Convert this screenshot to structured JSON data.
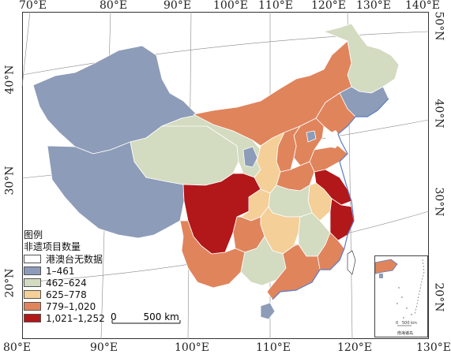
{
  "map": {
    "top_ticks": [
      "70°E",
      "80°E",
      "90°E",
      "100°E",
      "110°E",
      "120°E",
      "130°E",
      "140°E"
    ],
    "bottom_ticks": [
      "80°E",
      "90°E",
      "100°E",
      "110°E",
      "120°E",
      "130°E"
    ],
    "left_ticks": [
      "40°N",
      "30°N",
      "20°N"
    ],
    "right_ticks": [
      "50°N",
      "40°N",
      "30°N",
      "20°N"
    ]
  },
  "legend": {
    "title_line1": "图例",
    "title_line2": "非遗项目数量",
    "items": [
      {
        "label": "港澳台无数据",
        "color": "#ffffff"
      },
      {
        "label": "1–461",
        "color": "#8d9cb8"
      },
      {
        "label": "462–624",
        "color": "#d3dbc0"
      },
      {
        "label": "625–778",
        "color": "#f4cf98"
      },
      {
        "label": "779–1,020",
        "color": "#e0845c"
      },
      {
        "label": "1,021–1,252",
        "color": "#b2171a"
      }
    ]
  },
  "scale": {
    "zero": "0",
    "distance": "500 km"
  },
  "inset": {
    "scale_zero": "0",
    "scale_distance": "500 km",
    "caption": "南海诸岛",
    "tick_label": "20°N"
  }
}
